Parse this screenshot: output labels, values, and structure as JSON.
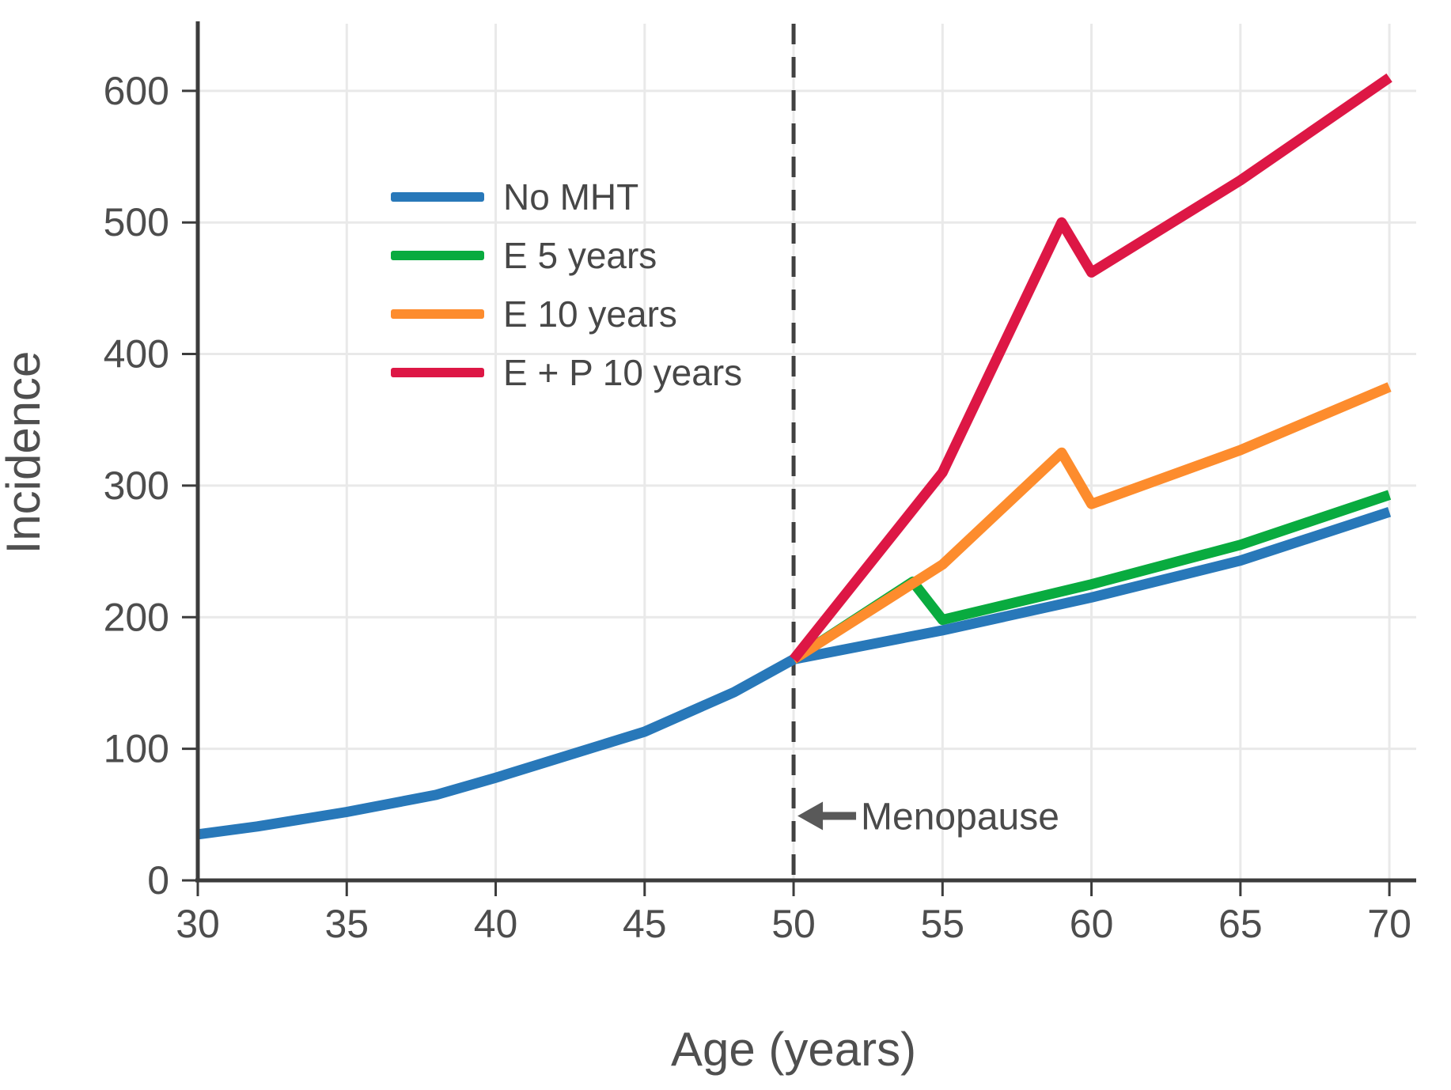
{
  "chart_data": {
    "type": "line",
    "title": "",
    "xlabel": "Age (years)",
    "ylabel": "Incidence",
    "xlim": [
      30,
      70.9
    ],
    "ylim": [
      0,
      651
    ],
    "x_ticks": [
      30,
      35,
      40,
      45,
      50,
      55,
      60,
      65,
      70
    ],
    "y_ticks": [
      0,
      100,
      200,
      300,
      400,
      500,
      600
    ],
    "grid": true,
    "legend_position": "upper-left-inside",
    "vline": {
      "x": 50,
      "style": "dashed"
    },
    "annotation": {
      "text": "Menopause",
      "arrow_icon": "left-arrow-icon",
      "x": 50,
      "y": 49
    },
    "series": [
      {
        "name": "No MHT",
        "color": "#2878b9",
        "points": [
          [
            30,
            35
          ],
          [
            32,
            41
          ],
          [
            35,
            52
          ],
          [
            38,
            65
          ],
          [
            40,
            78
          ],
          [
            42,
            92
          ],
          [
            45,
            113
          ],
          [
            47,
            133
          ],
          [
            48,
            143
          ],
          [
            50,
            168
          ],
          [
            55,
            190
          ],
          [
            60,
            215
          ],
          [
            65,
            243
          ],
          [
            70,
            280
          ]
        ]
      },
      {
        "name": "E 5 years",
        "color": "#09ab3f",
        "points": [
          [
            50,
            168
          ],
          [
            54,
            227
          ],
          [
            55,
            198
          ],
          [
            60,
            225
          ],
          [
            65,
            255
          ],
          [
            70,
            293
          ]
        ]
      },
      {
        "name": "E 10 years",
        "color": "#fd8c2d",
        "points": [
          [
            50,
            168
          ],
          [
            55,
            240
          ],
          [
            59,
            325
          ],
          [
            60,
            286
          ],
          [
            65,
            327
          ],
          [
            70,
            375
          ]
        ]
      },
      {
        "name": "E + P 10 years",
        "color": "#dd1745",
        "points": [
          [
            50,
            168
          ],
          [
            55,
            310
          ],
          [
            59,
            500
          ],
          [
            60,
            462
          ],
          [
            65,
            532
          ],
          [
            70,
            610
          ]
        ]
      }
    ]
  },
  "style": {
    "grid_color": "#e9e9e9",
    "spine_color": "#3c3c3c",
    "vline_color": "#414141",
    "arrow_color": "#595959"
  }
}
